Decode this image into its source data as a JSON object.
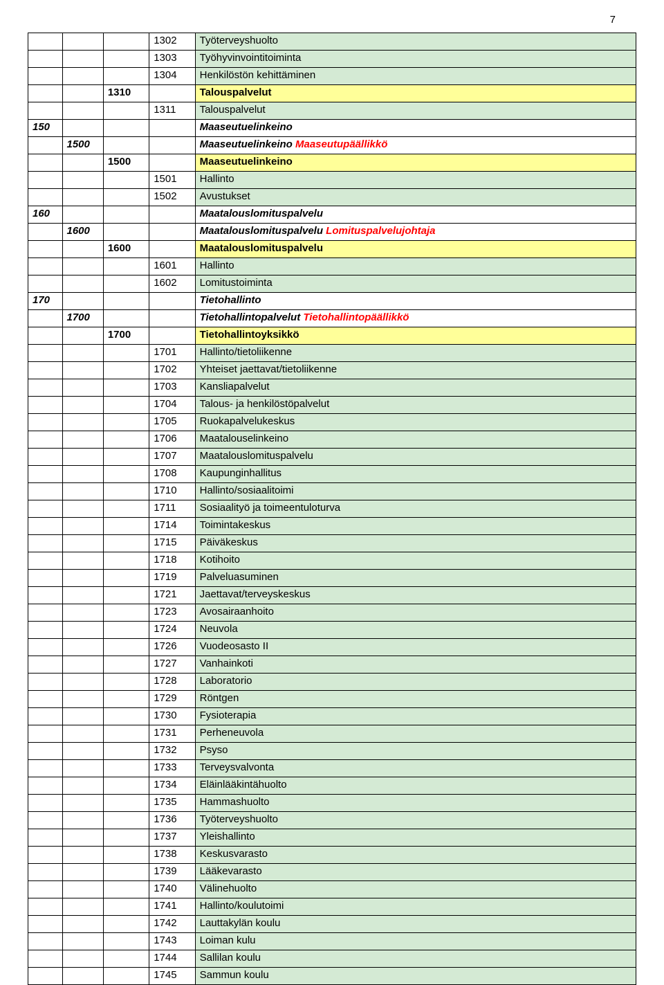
{
  "page_number": "7",
  "colors": {
    "green": "#d4ead4",
    "yellow": "#ffff99",
    "chief": "#ff0000",
    "border": "#000000",
    "background": "#ffffff"
  },
  "rows": [
    {
      "a": "",
      "b": "",
      "c": "",
      "d": "1302",
      "e": "Työterveyshuolto",
      "bg": "green",
      "style": ""
    },
    {
      "a": "",
      "b": "",
      "c": "",
      "d": "1303",
      "e": "Työhyvinvointitoiminta",
      "bg": "green",
      "style": ""
    },
    {
      "a": "",
      "b": "",
      "c": "",
      "d": "1304",
      "e": "Henkilöstön kehittäminen",
      "bg": "green",
      "style": ""
    },
    {
      "a": "",
      "b": "",
      "c": "1310",
      "d": "",
      "e": "Talouspalvelut",
      "bg": "yellow",
      "style": "bold"
    },
    {
      "a": "",
      "b": "",
      "c": "",
      "d": "1311",
      "e": "Talouspalvelut",
      "bg": "green",
      "style": ""
    },
    {
      "a": "150",
      "b": "",
      "c": "",
      "d": "",
      "e": "Maaseutuelinkeino",
      "bg": "",
      "style": "bold-italic"
    },
    {
      "a": "",
      "b": "1500",
      "c": "",
      "d": "",
      "e": "Maaseutuelinkeino",
      "e_chief": "Maaseutupäällikkö",
      "bg": "",
      "style": "bold-italic"
    },
    {
      "a": "",
      "b": "",
      "c": "1500",
      "d": "",
      "e": "Maaseutuelinkeino",
      "bg": "yellow",
      "style": "bold"
    },
    {
      "a": "",
      "b": "",
      "c": "",
      "d": "1501",
      "e": "Hallinto",
      "bg": "green",
      "style": ""
    },
    {
      "a": "",
      "b": "",
      "c": "",
      "d": "1502",
      "e": "Avustukset",
      "bg": "green",
      "style": ""
    },
    {
      "a": "160",
      "b": "",
      "c": "",
      "d": "",
      "e": "Maatalouslomituspalvelu",
      "bg": "",
      "style": "bold-italic"
    },
    {
      "a": "",
      "b": "1600",
      "c": "",
      "d": "",
      "e": "Maatalouslomituspalvelu",
      "e_chief": "Lomituspalvelujohtaja",
      "bg": "",
      "style": "bold-italic"
    },
    {
      "a": "",
      "b": "",
      "c": "1600",
      "d": "",
      "e": "Maatalouslomituspalvelu",
      "bg": "yellow",
      "style": "bold"
    },
    {
      "a": "",
      "b": "",
      "c": "",
      "d": "1601",
      "e": "Hallinto",
      "bg": "green",
      "style": ""
    },
    {
      "a": "",
      "b": "",
      "c": "",
      "d": "1602",
      "e": "Lomitustoiminta",
      "bg": "green",
      "style": ""
    },
    {
      "a": "170",
      "b": "",
      "c": "",
      "d": "",
      "e": "Tietohallinto",
      "bg": "",
      "style": "bold-italic"
    },
    {
      "a": "",
      "b": "1700",
      "c": "",
      "d": "",
      "e": "Tietohallintopalvelut",
      "e_chief": "Tietohallintopäällikkö",
      "bg": "",
      "style": "bold-italic"
    },
    {
      "a": "",
      "b": "",
      "c": "1700",
      "d": "",
      "e": "Tietohallintoyksikkö",
      "bg": "yellow",
      "style": "bold"
    },
    {
      "a": "",
      "b": "",
      "c": "",
      "d": "1701",
      "e": "Hallinto/tietoliikenne",
      "bg": "green",
      "style": ""
    },
    {
      "a": "",
      "b": "",
      "c": "",
      "d": "1702",
      "e": "Yhteiset jaettavat/tietoliikenne",
      "bg": "green",
      "style": ""
    },
    {
      "a": "",
      "b": "",
      "c": "",
      "d": "1703",
      "e": "Kansliapalvelut",
      "bg": "green",
      "style": ""
    },
    {
      "a": "",
      "b": "",
      "c": "",
      "d": "1704",
      "e": "Talous- ja henkilöstöpalvelut",
      "bg": "green",
      "style": ""
    },
    {
      "a": "",
      "b": "",
      "c": "",
      "d": "1705",
      "e": "Ruokapalvelukeskus",
      "bg": "green",
      "style": ""
    },
    {
      "a": "",
      "b": "",
      "c": "",
      "d": "1706",
      "e": "Maatalouselinkeino",
      "bg": "green",
      "style": ""
    },
    {
      "a": "",
      "b": "",
      "c": "",
      "d": "1707",
      "e": "Maatalouslomituspalvelu",
      "bg": "green",
      "style": ""
    },
    {
      "a": "",
      "b": "",
      "c": "",
      "d": "1708",
      "e": "Kaupunginhallitus",
      "bg": "green",
      "style": ""
    },
    {
      "a": "",
      "b": "",
      "c": "",
      "d": "1710",
      "e": "Hallinto/sosiaalitoimi",
      "bg": "green",
      "style": ""
    },
    {
      "a": "",
      "b": "",
      "c": "",
      "d": "1711",
      "e": "Sosiaalityö ja toimeentuloturva",
      "bg": "green",
      "style": ""
    },
    {
      "a": "",
      "b": "",
      "c": "",
      "d": "1714",
      "e": "Toimintakeskus",
      "bg": "green",
      "style": ""
    },
    {
      "a": "",
      "b": "",
      "c": "",
      "d": "1715",
      "e": "Päiväkeskus",
      "bg": "green",
      "style": ""
    },
    {
      "a": "",
      "b": "",
      "c": "",
      "d": "1718",
      "e": "Kotihoito",
      "bg": "green",
      "style": ""
    },
    {
      "a": "",
      "b": "",
      "c": "",
      "d": "1719",
      "e": "Palveluasuminen",
      "bg": "green",
      "style": ""
    },
    {
      "a": "",
      "b": "",
      "c": "",
      "d": "1721",
      "e": "Jaettavat/terveyskeskus",
      "bg": "green",
      "style": ""
    },
    {
      "a": "",
      "b": "",
      "c": "",
      "d": "1723",
      "e": "Avosairaanhoito",
      "bg": "green",
      "style": ""
    },
    {
      "a": "",
      "b": "",
      "c": "",
      "d": "1724",
      "e": "Neuvola",
      "bg": "green",
      "style": ""
    },
    {
      "a": "",
      "b": "",
      "c": "",
      "d": "1726",
      "e": "Vuodeosasto II",
      "bg": "green",
      "style": ""
    },
    {
      "a": "",
      "b": "",
      "c": "",
      "d": "1727",
      "e": "Vanhainkoti",
      "bg": "green",
      "style": ""
    },
    {
      "a": "",
      "b": "",
      "c": "",
      "d": "1728",
      "e": "Laboratorio",
      "bg": "green",
      "style": ""
    },
    {
      "a": "",
      "b": "",
      "c": "",
      "d": "1729",
      "e": "Röntgen",
      "bg": "green",
      "style": ""
    },
    {
      "a": "",
      "b": "",
      "c": "",
      "d": "1730",
      "e": "Fysioterapia",
      "bg": "green",
      "style": ""
    },
    {
      "a": "",
      "b": "",
      "c": "",
      "d": "1731",
      "e": "Perheneuvola",
      "bg": "green",
      "style": ""
    },
    {
      "a": "",
      "b": "",
      "c": "",
      "d": "1732",
      "e": "Psyso",
      "bg": "green",
      "style": ""
    },
    {
      "a": "",
      "b": "",
      "c": "",
      "d": "1733",
      "e": "Terveysvalvonta",
      "bg": "green",
      "style": ""
    },
    {
      "a": "",
      "b": "",
      "c": "",
      "d": "1734",
      "e": "Eläinlääkintähuolto",
      "bg": "green",
      "style": ""
    },
    {
      "a": "",
      "b": "",
      "c": "",
      "d": "1735",
      "e": "Hammashuolto",
      "bg": "green",
      "style": ""
    },
    {
      "a": "",
      "b": "",
      "c": "",
      "d": "1736",
      "e": "Työterveyshuolto",
      "bg": "green",
      "style": ""
    },
    {
      "a": "",
      "b": "",
      "c": "",
      "d": "1737",
      "e": "Yleishallinto",
      "bg": "green",
      "style": ""
    },
    {
      "a": "",
      "b": "",
      "c": "",
      "d": "1738",
      "e": "Keskusvarasto",
      "bg": "green",
      "style": ""
    },
    {
      "a": "",
      "b": "",
      "c": "",
      "d": "1739",
      "e": "Lääkevarasto",
      "bg": "green",
      "style": ""
    },
    {
      "a": "",
      "b": "",
      "c": "",
      "d": "1740",
      "e": "Välinehuolto",
      "bg": "green",
      "style": ""
    },
    {
      "a": "",
      "b": "",
      "c": "",
      "d": "1741",
      "e": "Hallinto/koulutoimi",
      "bg": "green",
      "style": ""
    },
    {
      "a": "",
      "b": "",
      "c": "",
      "d": "1742",
      "e": "Lauttakylän koulu",
      "bg": "green",
      "style": ""
    },
    {
      "a": "",
      "b": "",
      "c": "",
      "d": "1743",
      "e": "Loiman kulu",
      "bg": "green",
      "style": ""
    },
    {
      "a": "",
      "b": "",
      "c": "",
      "d": "1744",
      "e": "Sallilan koulu",
      "bg": "green",
      "style": ""
    },
    {
      "a": "",
      "b": "",
      "c": "",
      "d": "1745",
      "e": "Sammun koulu",
      "bg": "green",
      "style": ""
    }
  ]
}
